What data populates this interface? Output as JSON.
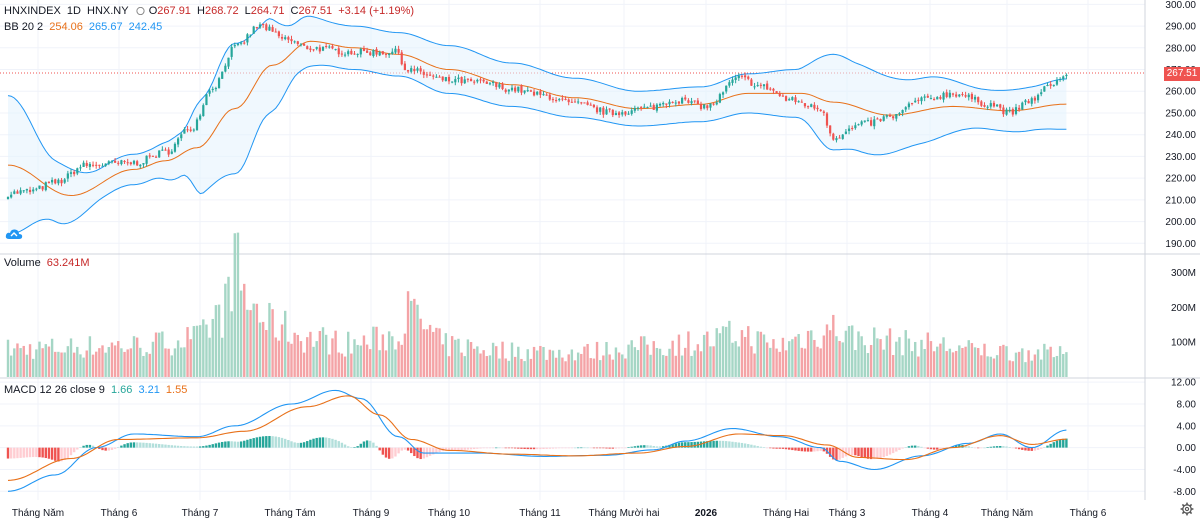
{
  "header": {
    "symbol": "HNXINDEX",
    "interval": "1D",
    "exchange": "HNX.NY",
    "open_label": "O",
    "open": "267.91",
    "high_label": "H",
    "high": "268.72",
    "low_label": "L",
    "low": "264.71",
    "close_label": "C",
    "close": "267.51",
    "change": "+3.14 (+1.19%)"
  },
  "bb_legend": {
    "label": "BB 20 2",
    "basis": "254.06",
    "upper": "265.67",
    "lower": "242.45"
  },
  "volume_legend": {
    "label": "Volume",
    "value": "63.241M"
  },
  "macd_legend": {
    "label": "MACD 12 26 close 9",
    "hist": "1.66",
    "macd": "3.21",
    "signal": "1.55"
  },
  "last_price_tag": "267.51",
  "colors": {
    "up": "#26a69a",
    "down": "#ef5350",
    "up_vol": "#a5d6c5",
    "down_vol": "#f4a3a6",
    "bb_upper": "#2196f3",
    "bb_basis": "#e8711a",
    "bb_fill": "#e3f2fd",
    "macd_line": "#2196f3",
    "signal_line": "#e8711a",
    "hist_up_strong": "#26a69a",
    "hist_up_weak": "#b2dfdb",
    "hist_down_strong": "#ef5350",
    "hist_down_weak": "#ffcdd2"
  },
  "chart_data": {
    "type": "candlestick",
    "x_labels": [
      "Tháng Năm",
      "Tháng 6",
      "Tháng 7",
      "Tháng Tám",
      "Tháng 9",
      "Tháng 10",
      "Tháng 11",
      "Tháng Mười hai",
      "2026",
      "Tháng Hai",
      "Tháng 3",
      "Tháng 4",
      "Tháng Năm",
      "Tháng 6"
    ],
    "price_axis": {
      "ticks": [
        "300.00",
        "290.00",
        "280.00",
        "270.00",
        "260.00",
        "250.00",
        "240.00",
        "230.00",
        "220.00",
        "210.00",
        "200.00",
        "190.00"
      ],
      "ylim": [
        186,
        302
      ]
    },
    "volume_axis": {
      "ticks": [
        "300M",
        "200M",
        "100M"
      ],
      "ylim": [
        0,
        330
      ]
    },
    "macd_axis": {
      "ticks": [
        "12.00",
        "8.00",
        "4.00",
        "0.00",
        "-4.00",
        "-8.00"
      ],
      "ylim": [
        -9.6,
        12.4
      ]
    },
    "close_anchors": [
      [
        0,
        213
      ],
      [
        7,
        214
      ],
      [
        15,
        218
      ],
      [
        25,
        226
      ],
      [
        40,
        227
      ],
      [
        50,
        232
      ],
      [
        58,
        243
      ],
      [
        65,
        262
      ],
      [
        72,
        280
      ],
      [
        80,
        290
      ],
      [
        88,
        284
      ],
      [
        95,
        280
      ],
      [
        110,
        278
      ],
      [
        124,
        278
      ],
      [
        126,
        270
      ],
      [
        140,
        265
      ],
      [
        150,
        264
      ],
      [
        160,
        261
      ],
      [
        170,
        258
      ],
      [
        180,
        254
      ],
      [
        192,
        250
      ],
      [
        202,
        252
      ],
      [
        212,
        256
      ],
      [
        222,
        253
      ],
      [
        232,
        266
      ],
      [
        240,
        262
      ],
      [
        248,
        256
      ],
      [
        258,
        252
      ],
      [
        262,
        239
      ],
      [
        272,
        245
      ],
      [
        280,
        248
      ],
      [
        290,
        256
      ],
      [
        300,
        259
      ],
      [
        312,
        254
      ],
      [
        318,
        250
      ],
      [
        325,
        256
      ],
      [
        332,
        264
      ],
      [
        336,
        267.51
      ]
    ],
    "basis_anchors": [
      [
        0,
        226
      ],
      [
        20,
        212
      ],
      [
        40,
        224
      ],
      [
        50,
        228
      ],
      [
        60,
        234
      ],
      [
        72,
        252
      ],
      [
        84,
        272
      ],
      [
        96,
        283
      ],
      [
        110,
        280
      ],
      [
        124,
        277
      ],
      [
        140,
        270
      ],
      [
        160,
        263
      ],
      [
        180,
        257
      ],
      [
        200,
        252
      ],
      [
        220,
        254
      ],
      [
        235,
        259
      ],
      [
        252,
        259
      ],
      [
        262,
        255
      ],
      [
        280,
        249
      ],
      [
        300,
        253
      ],
      [
        318,
        251
      ],
      [
        336,
        254.06
      ]
    ],
    "bandwidth_anchors": [
      [
        0,
        32
      ],
      [
        15,
        14
      ],
      [
        30,
        7
      ],
      [
        45,
        7
      ],
      [
        55,
        10
      ],
      [
        62,
        22
      ],
      [
        72,
        30
      ],
      [
        82,
        22
      ],
      [
        92,
        12
      ],
      [
        104,
        10
      ],
      [
        124,
        10
      ],
      [
        140,
        11
      ],
      [
        160,
        10
      ],
      [
        180,
        9
      ],
      [
        200,
        8
      ],
      [
        220,
        8
      ],
      [
        235,
        9
      ],
      [
        250,
        11
      ],
      [
        262,
        22
      ],
      [
        270,
        20
      ],
      [
        290,
        15
      ],
      [
        310,
        9
      ],
      [
        325,
        10
      ],
      [
        336,
        11.6
      ]
    ],
    "volume_series": "daily bars in millions, roughly 60-120M with peaks near 320M (Jul) and 185M (Nov)",
    "volume_anchors": [
      [
        0,
        80
      ],
      [
        40,
        90
      ],
      [
        60,
        110
      ],
      [
        68,
        180
      ],
      [
        72,
        320
      ],
      [
        76,
        210
      ],
      [
        84,
        150
      ],
      [
        96,
        110
      ],
      [
        110,
        95
      ],
      [
        124,
        120
      ],
      [
        126,
        185
      ],
      [
        140,
        90
      ],
      [
        160,
        75
      ],
      [
        180,
        70
      ],
      [
        200,
        85
      ],
      [
        220,
        100
      ],
      [
        232,
        120
      ],
      [
        244,
        90
      ],
      [
        255,
        120
      ],
      [
        262,
        140
      ],
      [
        270,
        110
      ],
      [
        290,
        95
      ],
      [
        310,
        75
      ],
      [
        325,
        70
      ],
      [
        336,
        63.241
      ]
    ],
    "macd_anchors": [
      [
        0,
        -8
      ],
      [
        15,
        -5
      ],
      [
        28,
        0
      ],
      [
        40,
        2.5
      ],
      [
        60,
        2
      ],
      [
        72,
        4
      ],
      [
        90,
        8
      ],
      [
        104,
        10.5
      ],
      [
        112,
        9
      ],
      [
        124,
        2
      ],
      [
        132,
        -1
      ],
      [
        150,
        -1
      ],
      [
        170,
        -1.6
      ],
      [
        190,
        -1.4
      ],
      [
        205,
        -0.4
      ],
      [
        215,
        1.2
      ],
      [
        230,
        3.5
      ],
      [
        245,
        2
      ],
      [
        258,
        0
      ],
      [
        264,
        -2.5
      ],
      [
        275,
        -4
      ],
      [
        290,
        -1.5
      ],
      [
        305,
        0.8
      ],
      [
        315,
        2.5
      ],
      [
        325,
        0
      ],
      [
        336,
        3.21
      ]
    ],
    "signal_anchors": [
      [
        0,
        -6
      ],
      [
        20,
        -2
      ],
      [
        35,
        1.5
      ],
      [
        60,
        1.8
      ],
      [
        75,
        3
      ],
      [
        95,
        7.5
      ],
      [
        108,
        9.5
      ],
      [
        118,
        6
      ],
      [
        128,
        1.5
      ],
      [
        140,
        -0.5
      ],
      [
        160,
        -1.2
      ],
      [
        180,
        -1.5
      ],
      [
        200,
        -1
      ],
      [
        215,
        0.2
      ],
      [
        232,
        2.5
      ],
      [
        246,
        2.2
      ],
      [
        260,
        0.5
      ],
      [
        270,
        -1.8
      ],
      [
        285,
        -2.2
      ],
      [
        300,
        0
      ],
      [
        315,
        2.2
      ],
      [
        325,
        0.6
      ],
      [
        336,
        1.55
      ]
    ],
    "last_close": 267.51
  }
}
